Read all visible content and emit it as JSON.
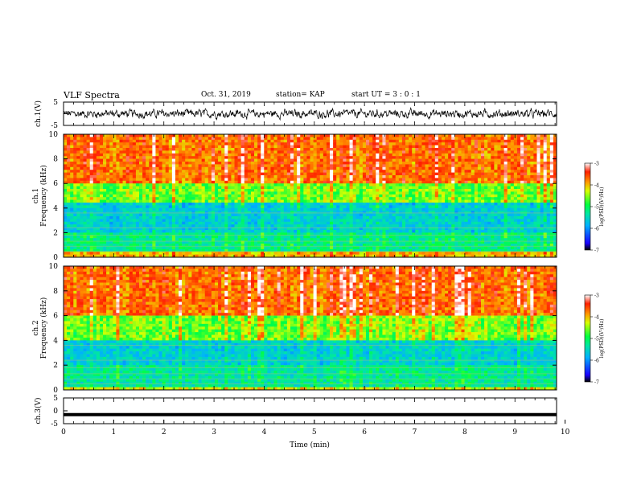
{
  "header": {
    "title": "VLF Spectra",
    "date": "Oct. 31, 2019",
    "station": "station= KAP",
    "start": "start  UT =  3 : 0  : 1"
  },
  "chart_data": [
    {
      "type": "line",
      "panel": "ch1-waveform",
      "ylabel": "ch.1(V)",
      "yticks": [
        "5",
        "-5"
      ],
      "ylim": [
        -5,
        5
      ],
      "xlim": [
        0,
        10
      ],
      "description_values": "noisy waveform centered near 0 V with amplitude about ±1.5 V",
      "color": "#000000"
    },
    {
      "type": "heatmap",
      "panel": "ch1-spectrogram",
      "ylabel": "ch.1",
      "ylabel2": "Frequency  (kHz)",
      "yticks": [
        "0",
        "2",
        "4",
        "6",
        "8",
        "10"
      ],
      "ylim": [
        0,
        10
      ],
      "xlim": [
        0,
        10
      ],
      "colorbar": {
        "label": "log(PSD)(V²/Hz)",
        "ticks": [
          "-3",
          "-4",
          "-5",
          "-6",
          "-7"
        ],
        "range": [
          -7,
          -3
        ]
      },
      "bands": [
        {
          "f_low": 6,
          "f_high": 10,
          "level": -3.7
        },
        {
          "f_low": 4.5,
          "f_high": 6,
          "level": -4.6
        },
        {
          "f_low": 2,
          "f_high": 4.5,
          "level": -5.6
        },
        {
          "f_low": 0.4,
          "f_high": 2,
          "level": -5.2
        },
        {
          "f_low": 0,
          "f_high": 0.4,
          "level": -4.0
        }
      ]
    },
    {
      "type": "heatmap",
      "panel": "ch2-spectrogram",
      "ylabel": "ch.2",
      "ylabel2": "Frequency  (kHz)",
      "yticks": [
        "0",
        "2",
        "4",
        "6",
        "8",
        "10"
      ],
      "ylim": [
        0,
        10
      ],
      "xlim": [
        0,
        10
      ],
      "colorbar": {
        "label": "log(PSD)(V²/Hz)",
        "ticks": [
          "-3",
          "-4",
          "-5",
          "-6",
          "-7"
        ],
        "range": [
          -7,
          -3
        ]
      },
      "bands": [
        {
          "f_low": 6,
          "f_high": 10,
          "level": -3.7
        },
        {
          "f_low": 4,
          "f_high": 6,
          "level": -4.6
        },
        {
          "f_low": 2,
          "f_high": 4,
          "level": -5.6
        },
        {
          "f_low": 0.3,
          "f_high": 2,
          "level": -5.3
        },
        {
          "f_low": 0,
          "f_high": 0.3,
          "level": -4.3
        }
      ]
    },
    {
      "type": "line",
      "panel": "ch3-waveform",
      "ylabel": "ch.3(V)",
      "yticks": [
        "5",
        "0",
        "-5"
      ],
      "ylim": [
        -5,
        5
      ],
      "xlim": [
        0,
        10
      ],
      "constant_value": -1.5,
      "color": "#000000",
      "xlabel": "Time  (min)",
      "xticks": [
        "0",
        "1",
        "2",
        "3",
        "4",
        "5",
        "6",
        "7",
        "8",
        "9",
        "10"
      ]
    }
  ]
}
